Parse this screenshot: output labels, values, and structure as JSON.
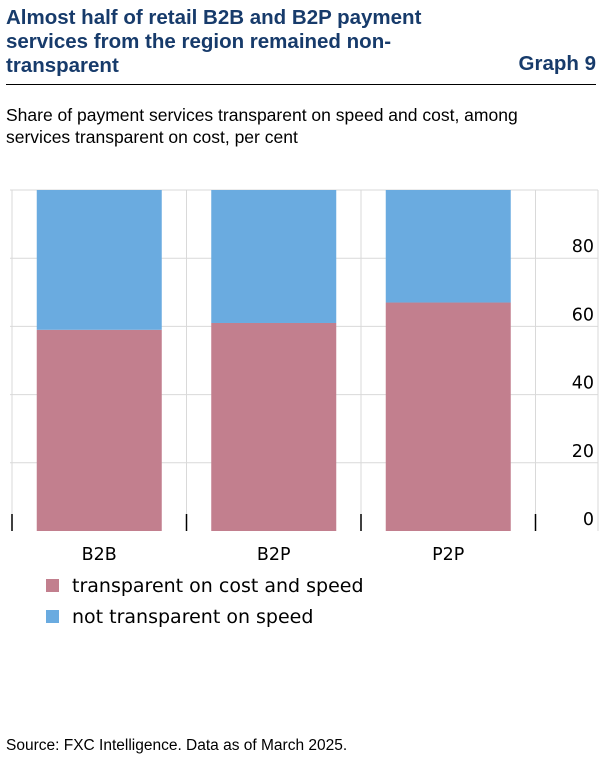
{
  "header": {
    "title": "Almost half of retail B2B and B2P payment services from the region remained non-transparent",
    "graph_label": "Graph 9"
  },
  "subtitle": "Share of payment services transparent on speed and cost, among services transparent on cost, per cent",
  "source": "Source: FXC Intelligence. Data as of March 2025.",
  "colors": {
    "transparent": "#c27f8e",
    "not_transparent": "#6aabe0",
    "grid": "#d9d9d9"
  },
  "chart_data": {
    "type": "bar",
    "stacked": true,
    "title": "Almost half of retail B2B and B2P payment services from the region remained non-transparent",
    "xlabel": "",
    "ylabel": "per cent",
    "categories": [
      "B2B",
      "B2P",
      "P2P"
    ],
    "series": [
      {
        "name": "transparent on cost and speed",
        "values": [
          59,
          61,
          67
        ]
      },
      {
        "name": "not transparent on speed",
        "values": [
          41,
          39,
          33
        ]
      }
    ],
    "ylim": [
      0,
      100
    ],
    "yticks": [
      0,
      20,
      40,
      60,
      80
    ],
    "ytick_labels": [
      "0",
      "20",
      "40",
      "60",
      "80"
    ],
    "y_axis_side": "right",
    "grid": true,
    "legend": "bottom-left"
  }
}
